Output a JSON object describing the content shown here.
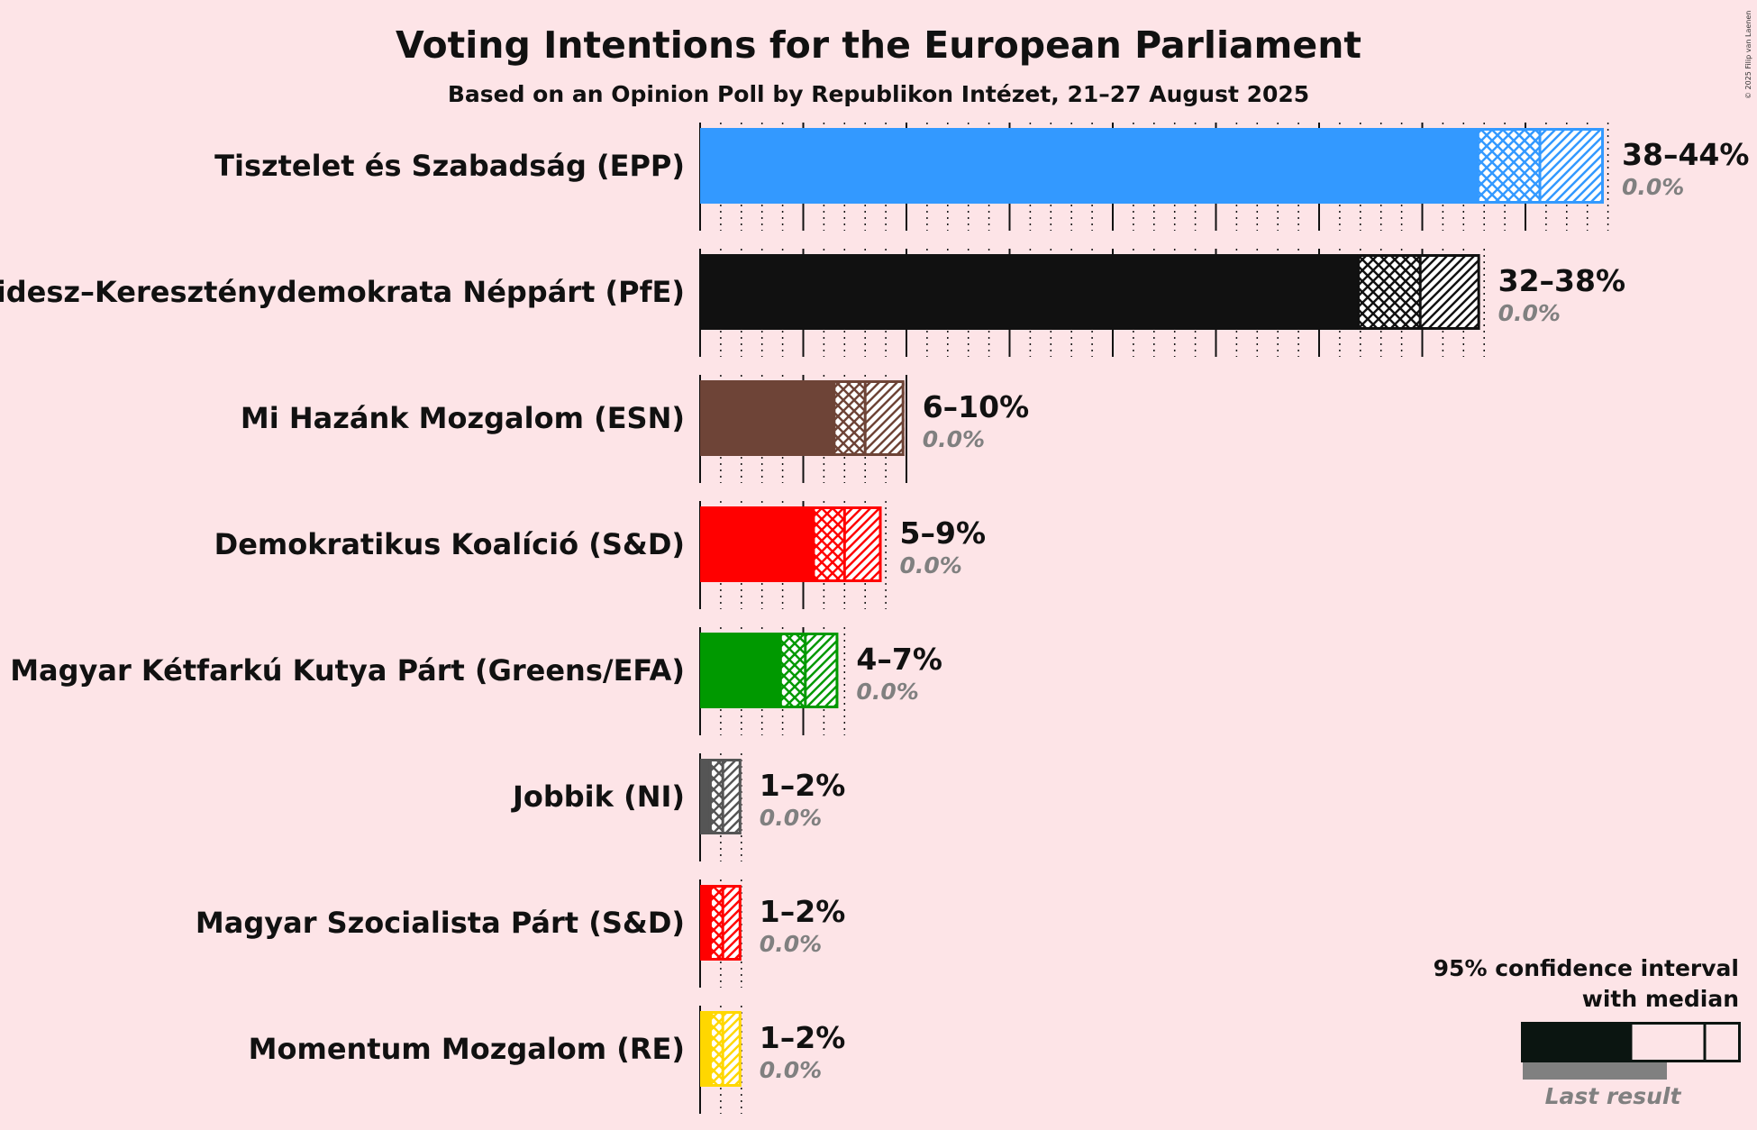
{
  "title": "Voting Intentions for the European Parliament",
  "subtitle": "Based on an Opinion Poll by Republikon Intézet, 21–27 August 2025",
  "copyright": "© 2025 Filip van Laenen",
  "chart_data": {
    "type": "bar",
    "orientation": "horizontal",
    "unit": "%",
    "xlim": [
      0,
      44
    ],
    "categories": [
      "Tisztelet és Szabadság (EPP)",
      "Fidesz–Kereszténydemokrata Néppárt (PfE)",
      "Mi Hazánk Mozgalom (ESN)",
      "Demokratikus Koalíció (S&D)",
      "Magyar Kétfarkú Kutya Párt (Greens/EFA)",
      "Jobbik (NI)",
      "Magyar Szocialista Párt (S&D)",
      "Momentum Mozgalom (RE)"
    ],
    "series": [
      {
        "name": "Tisztelet és Szabadság (EPP)",
        "ci_low": 37.7,
        "median": 40.7,
        "ci_high": 43.8,
        "range_label": "38–44%",
        "last_result": "0.0%",
        "color": "#3399ff"
      },
      {
        "name": "Fidesz–Kereszténydemokrata Néppárt (PfE)",
        "ci_low": 31.9,
        "median": 34.9,
        "ci_high": 37.8,
        "range_label": "32–38%",
        "last_result": "0.0%",
        "color": "#111111"
      },
      {
        "name": "Mi Hazánk Mozgalom (ESN)",
        "ci_low": 6.5,
        "median": 8.0,
        "ci_high": 9.9,
        "range_label": "6–10%",
        "last_result": "0.0%",
        "color": "#6e4437"
      },
      {
        "name": "Demokratikus Koalíció (S&D)",
        "ci_low": 5.5,
        "median": 7.0,
        "ci_high": 8.8,
        "range_label": "5–9%",
        "last_result": "0.0%",
        "color": "#ff0000"
      },
      {
        "name": "Magyar Kétfarkú Kutya Párt (Greens/EFA)",
        "ci_low": 3.9,
        "median": 5.1,
        "ci_high": 6.7,
        "range_label": "4–7%",
        "last_result": "0.0%",
        "color": "#009900"
      },
      {
        "name": "Jobbik (NI)",
        "ci_low": 0.5,
        "median": 1.1,
        "ci_high": 2.0,
        "range_label": "1–2%",
        "last_result": "0.0%",
        "color": "#555555"
      },
      {
        "name": "Magyar Szocialista Párt (S&D)",
        "ci_low": 0.5,
        "median": 1.1,
        "ci_high": 2.0,
        "range_label": "1–2%",
        "last_result": "0.0%",
        "color": "#ff0000"
      },
      {
        "name": "Momentum Mozgalom (RE)",
        "ci_low": 0.5,
        "median": 1.1,
        "ci_high": 2.0,
        "range_label": "1–2%",
        "last_result": "0.0%",
        "color": "#ffd700"
      }
    ],
    "grid": "vertical lines every 1% (dotted), every 5% (solid)",
    "legend": {
      "position": "bottom-right",
      "line1": "95% confidence interval",
      "line2": "with median",
      "last_result_label": "Last result",
      "color": "#0b1511",
      "last_color": "#808080"
    }
  }
}
